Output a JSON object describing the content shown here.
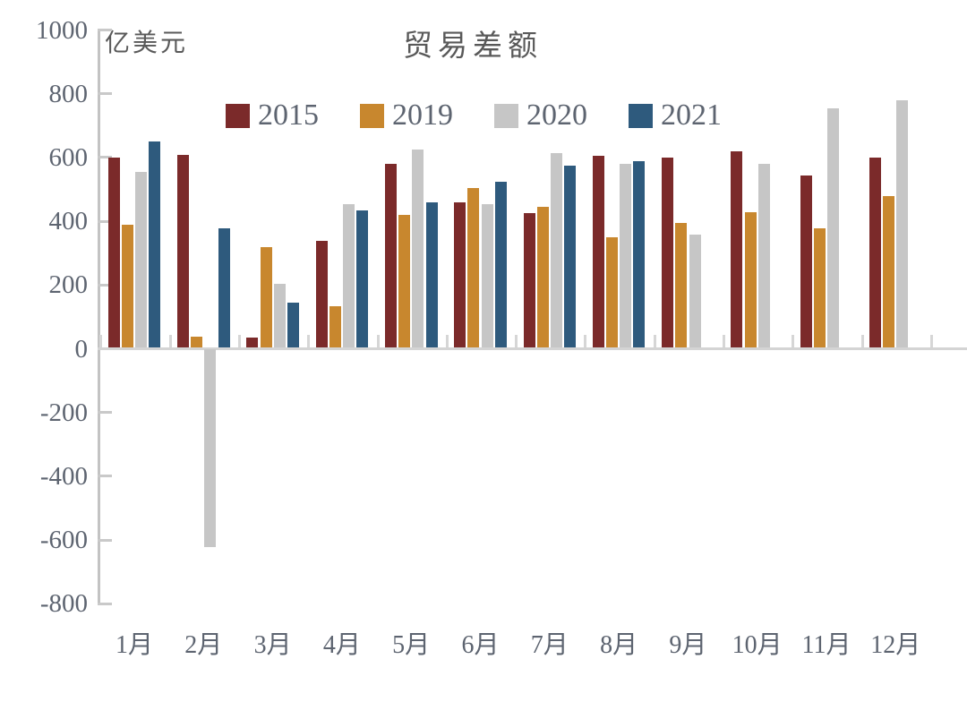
{
  "chart": {
    "title": "贸易差额",
    "unit_label": "亿美元"
  },
  "chart_data": {
    "type": "bar",
    "title": "贸易差额",
    "ylabel": "亿美元",
    "categories": [
      "1月",
      "2月",
      "3月",
      "4月",
      "5月",
      "6月",
      "7月",
      "8月",
      "9月",
      "10月",
      "11月",
      "12月"
    ],
    "series": [
      {
        "name": "2015",
        "color": "#7b2a2a",
        "values": [
          595,
          605,
          30,
          335,
          575,
          455,
          420,
          600,
          595,
          615,
          540,
          595
        ]
      },
      {
        "name": "2019",
        "color": "#c8872e",
        "values": [
          385,
          35,
          315,
          130,
          415,
          500,
          440,
          345,
          390,
          425,
          375,
          475
        ]
      },
      {
        "name": "2020",
        "color": "#c6c6c6",
        "values": [
          550,
          -620,
          200,
          450,
          620,
          450,
          610,
          575,
          355,
          575,
          750,
          775
        ]
      },
      {
        "name": "2021",
        "color": "#2e5a7d",
        "values": [
          645,
          375,
          140,
          430,
          455,
          520,
          570,
          585,
          null,
          null,
          null,
          null
        ]
      }
    ],
    "ylim": [
      -800,
      1000
    ],
    "ytick_step": 200,
    "ytick_labels": [
      "1000",
      "800",
      "600",
      "400",
      "200",
      "0",
      "-200",
      "-400",
      "-600",
      "-800"
    ],
    "legend_position": "top",
    "grid": false,
    "axis_color": "#c3c3c3",
    "text_color": "#5d6470"
  }
}
